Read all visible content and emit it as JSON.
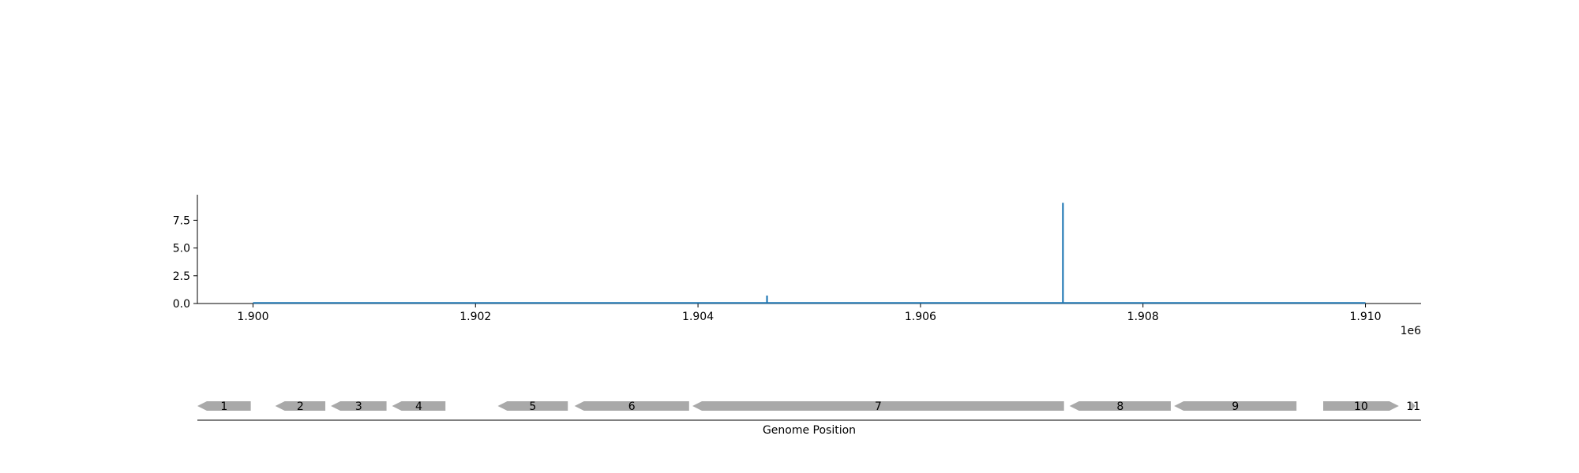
{
  "chart_data": [
    {
      "type": "line",
      "x_offset_label": "1e6",
      "xlim": [
        1899500,
        1910500
      ],
      "ylim": [
        0,
        9.8
      ],
      "x_ticks": [
        1900000,
        1902000,
        1904000,
        1906000,
        1908000,
        1910000
      ],
      "x_tick_labels": [
        "1.900",
        "1.902",
        "1.904",
        "1.906",
        "1.908",
        "1.910"
      ],
      "y_ticks": [
        0,
        2.5,
        5,
        7.5
      ],
      "y_tick_labels": [
        "0.0",
        "2.5",
        "5.0",
        "7.5"
      ],
      "line_color": "#1f77b4",
      "grid": false,
      "series": [
        {
          "x": [
            1900000,
            1904620,
            1904620,
            1904621,
            1904621,
            1907280,
            1907280,
            1907281,
            1907281,
            1910000
          ],
          "y": [
            0.05,
            0.05,
            0.65,
            0.65,
            0.05,
            0.05,
            9.0,
            9.0,
            0.05,
            0.05
          ]
        }
      ]
    },
    {
      "type": "gene-track",
      "xlabel": "Genome Position",
      "xlim": [
        1899500,
        1910500
      ],
      "feature_color": "#a9a9a9",
      "features": [
        {
          "label": "1",
          "start": 1899500,
          "end": 1899980,
          "strand": -1
        },
        {
          "label": "2",
          "start": 1900200,
          "end": 1900650,
          "strand": -1
        },
        {
          "label": "3",
          "start": 1900700,
          "end": 1901200,
          "strand": -1
        },
        {
          "label": "4",
          "start": 1901250,
          "end": 1901730,
          "strand": -1
        },
        {
          "label": "5",
          "start": 1902200,
          "end": 1902830,
          "strand": -1
        },
        {
          "label": "6",
          "start": 1902890,
          "end": 1903920,
          "strand": -1
        },
        {
          "label": "7",
          "start": 1903950,
          "end": 1907290,
          "strand": -1
        },
        {
          "label": "8",
          "start": 1907340,
          "end": 1908250,
          "strand": -1
        },
        {
          "label": "9",
          "start": 1908280,
          "end": 1909380,
          "strand": -1
        },
        {
          "label": "10",
          "start": 1909620,
          "end": 1910300,
          "strand": 1
        },
        {
          "label": "11",
          "start": 1910410,
          "end": 1910450,
          "strand": 1
        }
      ]
    }
  ]
}
